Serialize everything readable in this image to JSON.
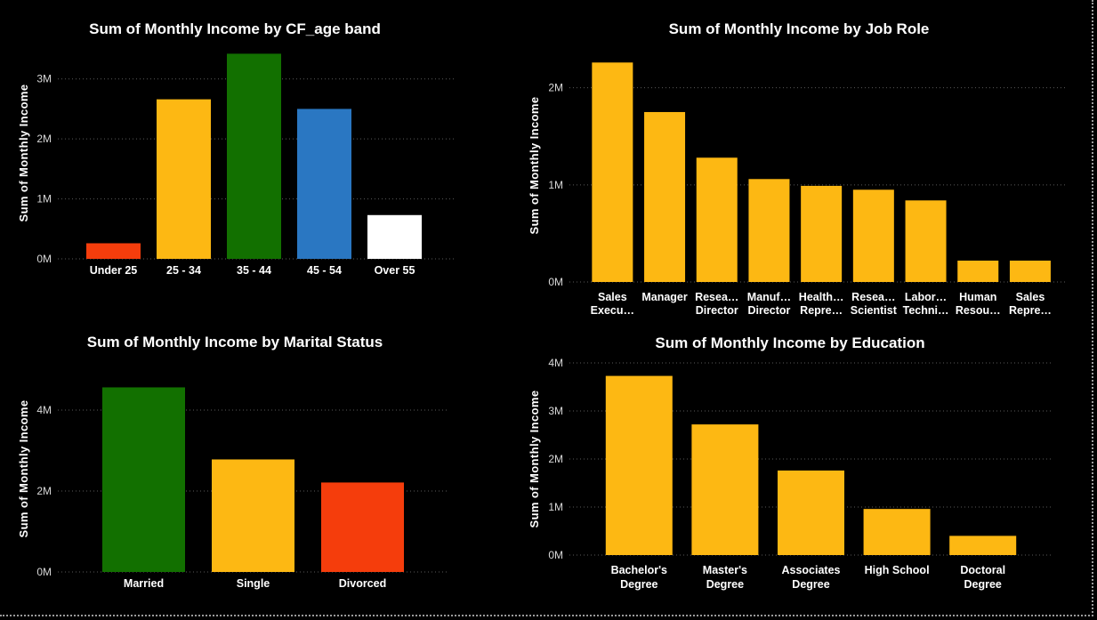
{
  "colors": {
    "background": "#000000",
    "gold": "#FDB813",
    "green": "#127000",
    "blue": "#2A77C2",
    "red": "#F53D0C",
    "white": "#FFFFFF"
  },
  "chart_data": [
    {
      "type": "bar",
      "title": "Sum of Monthly Income by CF_age band",
      "ylabel": "Sum of Monthly Income",
      "xlabel": "",
      "categories": [
        "Under 25",
        "25 - 34",
        "35 - 44",
        "45 - 54",
        "Over 55"
      ],
      "values": [
        260000,
        2660000,
        3420000,
        2500000,
        730000
      ],
      "bar_colors": [
        "#F53D0C",
        "#FDB813",
        "#127000",
        "#2A77C2",
        "#FFFFFF"
      ],
      "ylim": [
        0,
        3500000
      ],
      "yticks": [
        0,
        1000000,
        2000000,
        3000000
      ],
      "ytick_labels": [
        "0M",
        "1M",
        "2M",
        "3M"
      ],
      "grid": true
    },
    {
      "type": "bar",
      "title": "Sum of Monthly Income by Job Role",
      "ylabel": "Sum of Monthly Income",
      "xlabel": "",
      "categories": [
        [
          "Sales",
          "Execu…"
        ],
        [
          "Manager"
        ],
        [
          "Resea…",
          "Director"
        ],
        [
          "Manuf…",
          "Director"
        ],
        [
          "Health…",
          "Repre…"
        ],
        [
          "Resea…",
          "Scientist"
        ],
        [
          "Labor…",
          "Techni…"
        ],
        [
          "Human",
          "Resou…"
        ],
        [
          "Sales",
          "Repre…"
        ]
      ],
      "values": [
        2260000,
        1750000,
        1280000,
        1060000,
        990000,
        950000,
        840000,
        220000,
        220000
      ],
      "bar_colors": [
        "#FDB813"
      ],
      "ylim": [
        0,
        2400000
      ],
      "yticks": [
        0,
        1000000,
        2000000
      ],
      "ytick_labels": [
        "0M",
        "1M",
        "2M"
      ],
      "grid": true
    },
    {
      "type": "bar",
      "title": "Sum of Monthly Income by Marital Status",
      "ylabel": "Sum of Monthly Income",
      "xlabel": "",
      "categories": [
        "Married",
        "Single",
        "Divorced"
      ],
      "values": [
        4560000,
        2780000,
        2210000
      ],
      "bar_colors": [
        "#127000",
        "#FDB813",
        "#F53D0C"
      ],
      "ylim": [
        0,
        4900000
      ],
      "yticks": [
        0,
        2000000,
        4000000
      ],
      "ytick_labels": [
        "0M",
        "2M",
        "4M"
      ],
      "grid": true
    },
    {
      "type": "bar",
      "title": "Sum of Monthly Income by Education",
      "ylabel": "Sum of Monthly Income",
      "xlabel": "",
      "categories": [
        [
          "Bachelor's",
          "Degree"
        ],
        [
          "Master's",
          "Degree"
        ],
        [
          "Associates",
          "Degree"
        ],
        [
          "High School"
        ],
        [
          "Doctoral",
          "Degree"
        ]
      ],
      "values": [
        3730000,
        2720000,
        1760000,
        960000,
        400000
      ],
      "bar_colors": [
        "#FDB813"
      ],
      "ylim": [
        0,
        4000000
      ],
      "yticks": [
        0,
        1000000,
        2000000,
        3000000,
        4000000
      ],
      "ytick_labels": [
        "0M",
        "1M",
        "2M",
        "3M",
        "4M"
      ],
      "grid": true
    }
  ]
}
